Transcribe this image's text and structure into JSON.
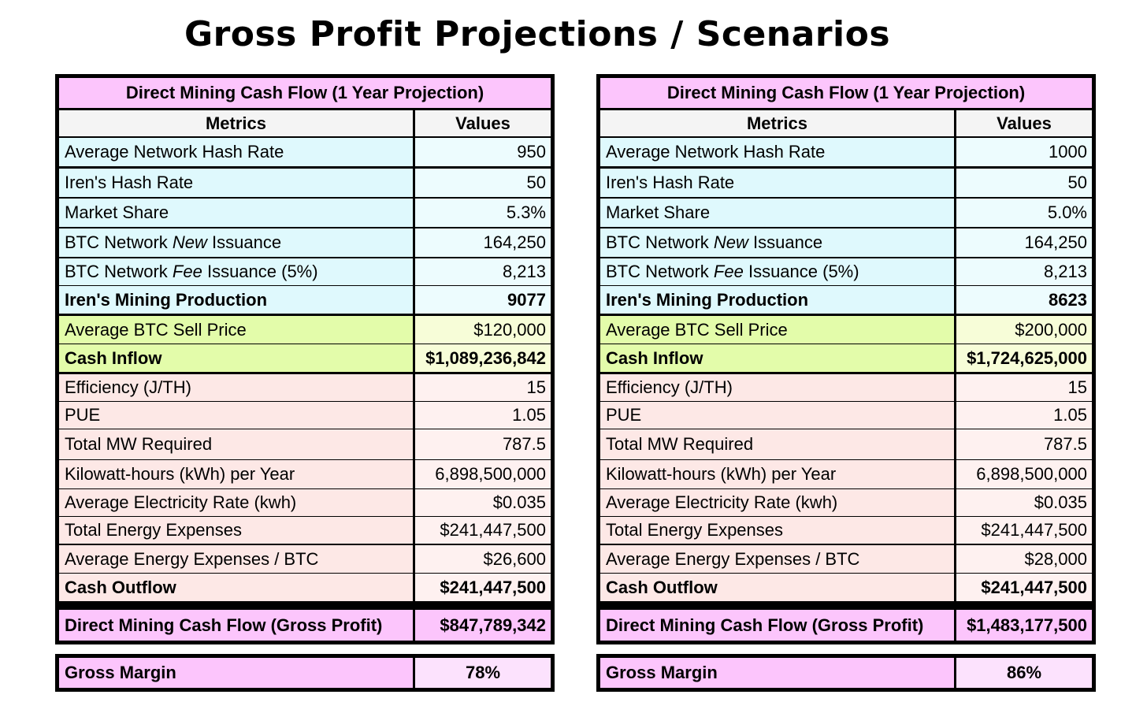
{
  "page": {
    "title": "Gross Profit Projections / Scenarios"
  },
  "colors": {
    "header_pink": "#fcc5fc",
    "header_grey": "#f4f4f4",
    "network_metric": "#dff9fd",
    "network_value": "#edfcfe",
    "inflow_metric": "#e3fcaa",
    "inflow_value": "#f7fdd8",
    "outflow_metric": "#fde8e6",
    "outflow_value": "#fef1f0",
    "margin_value": "#fce2fd",
    "grid_line": "#ffffff"
  },
  "tables": [
    {
      "header": "Direct Mining Cash Flow (1 Year Projection)",
      "col_metrics": "Metrics",
      "col_values": "Values",
      "network": [
        {
          "metric": "Average Network Hash Rate",
          "value": "950"
        },
        {
          "metric": "Iren's Hash Rate",
          "value": "50"
        },
        {
          "metric": "Market Share",
          "value": "5.3%"
        },
        {
          "metric_pre": "BTC Network ",
          "metric_em": "New",
          "metric_post": " Issuance",
          "value": "164,250"
        },
        {
          "metric_pre": "BTC Network ",
          "metric_em": "Fee",
          "metric_post": " Issuance (5%)",
          "value": "8,213"
        },
        {
          "metric": "Iren's Mining Production",
          "value": "9077",
          "bold": true
        }
      ],
      "inflow": [
        {
          "metric": "Average BTC Sell Price",
          "value": "$120,000"
        },
        {
          "metric": "Cash Inflow",
          "value": "$1,089,236,842",
          "bold": true
        }
      ],
      "outflow": [
        {
          "metric": "Efficiency (J/TH)",
          "value": "15"
        },
        {
          "metric": "PUE",
          "value": "1.05"
        },
        {
          "metric": "Total MW Required",
          "value": "787.5"
        },
        {
          "metric": "Kilowatt-hours (kWh) per Year",
          "value": "6,898,500,000"
        },
        {
          "metric": "Average Electricity Rate (kwh)",
          "value": "$0.035"
        },
        {
          "metric": "Total Energy Expenses",
          "value": "$241,447,500"
        },
        {
          "metric": "Average Energy Expenses / BTC",
          "value": "$26,600"
        },
        {
          "metric": "Cash Outflow",
          "value": "$241,447,500",
          "bold": true
        }
      ],
      "gross_profit": {
        "metric": "Direct Mining Cash Flow (Gross Profit)",
        "value": "$847,789,342"
      },
      "gross_margin": {
        "metric": "Gross Margin",
        "value": "78%"
      }
    },
    {
      "header": "Direct Mining Cash Flow (1 Year Projection)",
      "col_metrics": "Metrics",
      "col_values": "Values",
      "network": [
        {
          "metric": "Average Network Hash Rate",
          "value": "1000"
        },
        {
          "metric": "Iren's Hash Rate",
          "value": "50"
        },
        {
          "metric": "Market Share",
          "value": "5.0%"
        },
        {
          "metric_pre": "BTC Network ",
          "metric_em": "New",
          "metric_post": " Issuance",
          "value": "164,250"
        },
        {
          "metric_pre": "BTC Network ",
          "metric_em": "Fee",
          "metric_post": " Issuance (5%)",
          "value": "8,213"
        },
        {
          "metric": "Iren's Mining Production",
          "value": "8623",
          "bold": true
        }
      ],
      "inflow": [
        {
          "metric": "Average BTC Sell Price",
          "value": "$200,000"
        },
        {
          "metric": "Cash Inflow",
          "value": "$1,724,625,000",
          "bold": true
        }
      ],
      "outflow": [
        {
          "metric": "Efficiency (J/TH)",
          "value": "15"
        },
        {
          "metric": "PUE",
          "value": "1.05"
        },
        {
          "metric": "Total MW Required",
          "value": "787.5"
        },
        {
          "metric": "Kilowatt-hours (kWh) per Year",
          "value": "6,898,500,000"
        },
        {
          "metric": "Average Electricity Rate (kwh)",
          "value": "$0.035"
        },
        {
          "metric": "Total Energy Expenses",
          "value": "$241,447,500"
        },
        {
          "metric": "Average Energy Expenses / BTC",
          "value": "$28,000"
        },
        {
          "metric": "Cash Outflow",
          "value": "$241,447,500",
          "bold": true
        }
      ],
      "gross_profit": {
        "metric": "Direct Mining Cash Flow (Gross Profit)",
        "value": "$1,483,177,500"
      },
      "gross_margin": {
        "metric": "Gross Margin",
        "value": "86%"
      }
    }
  ]
}
